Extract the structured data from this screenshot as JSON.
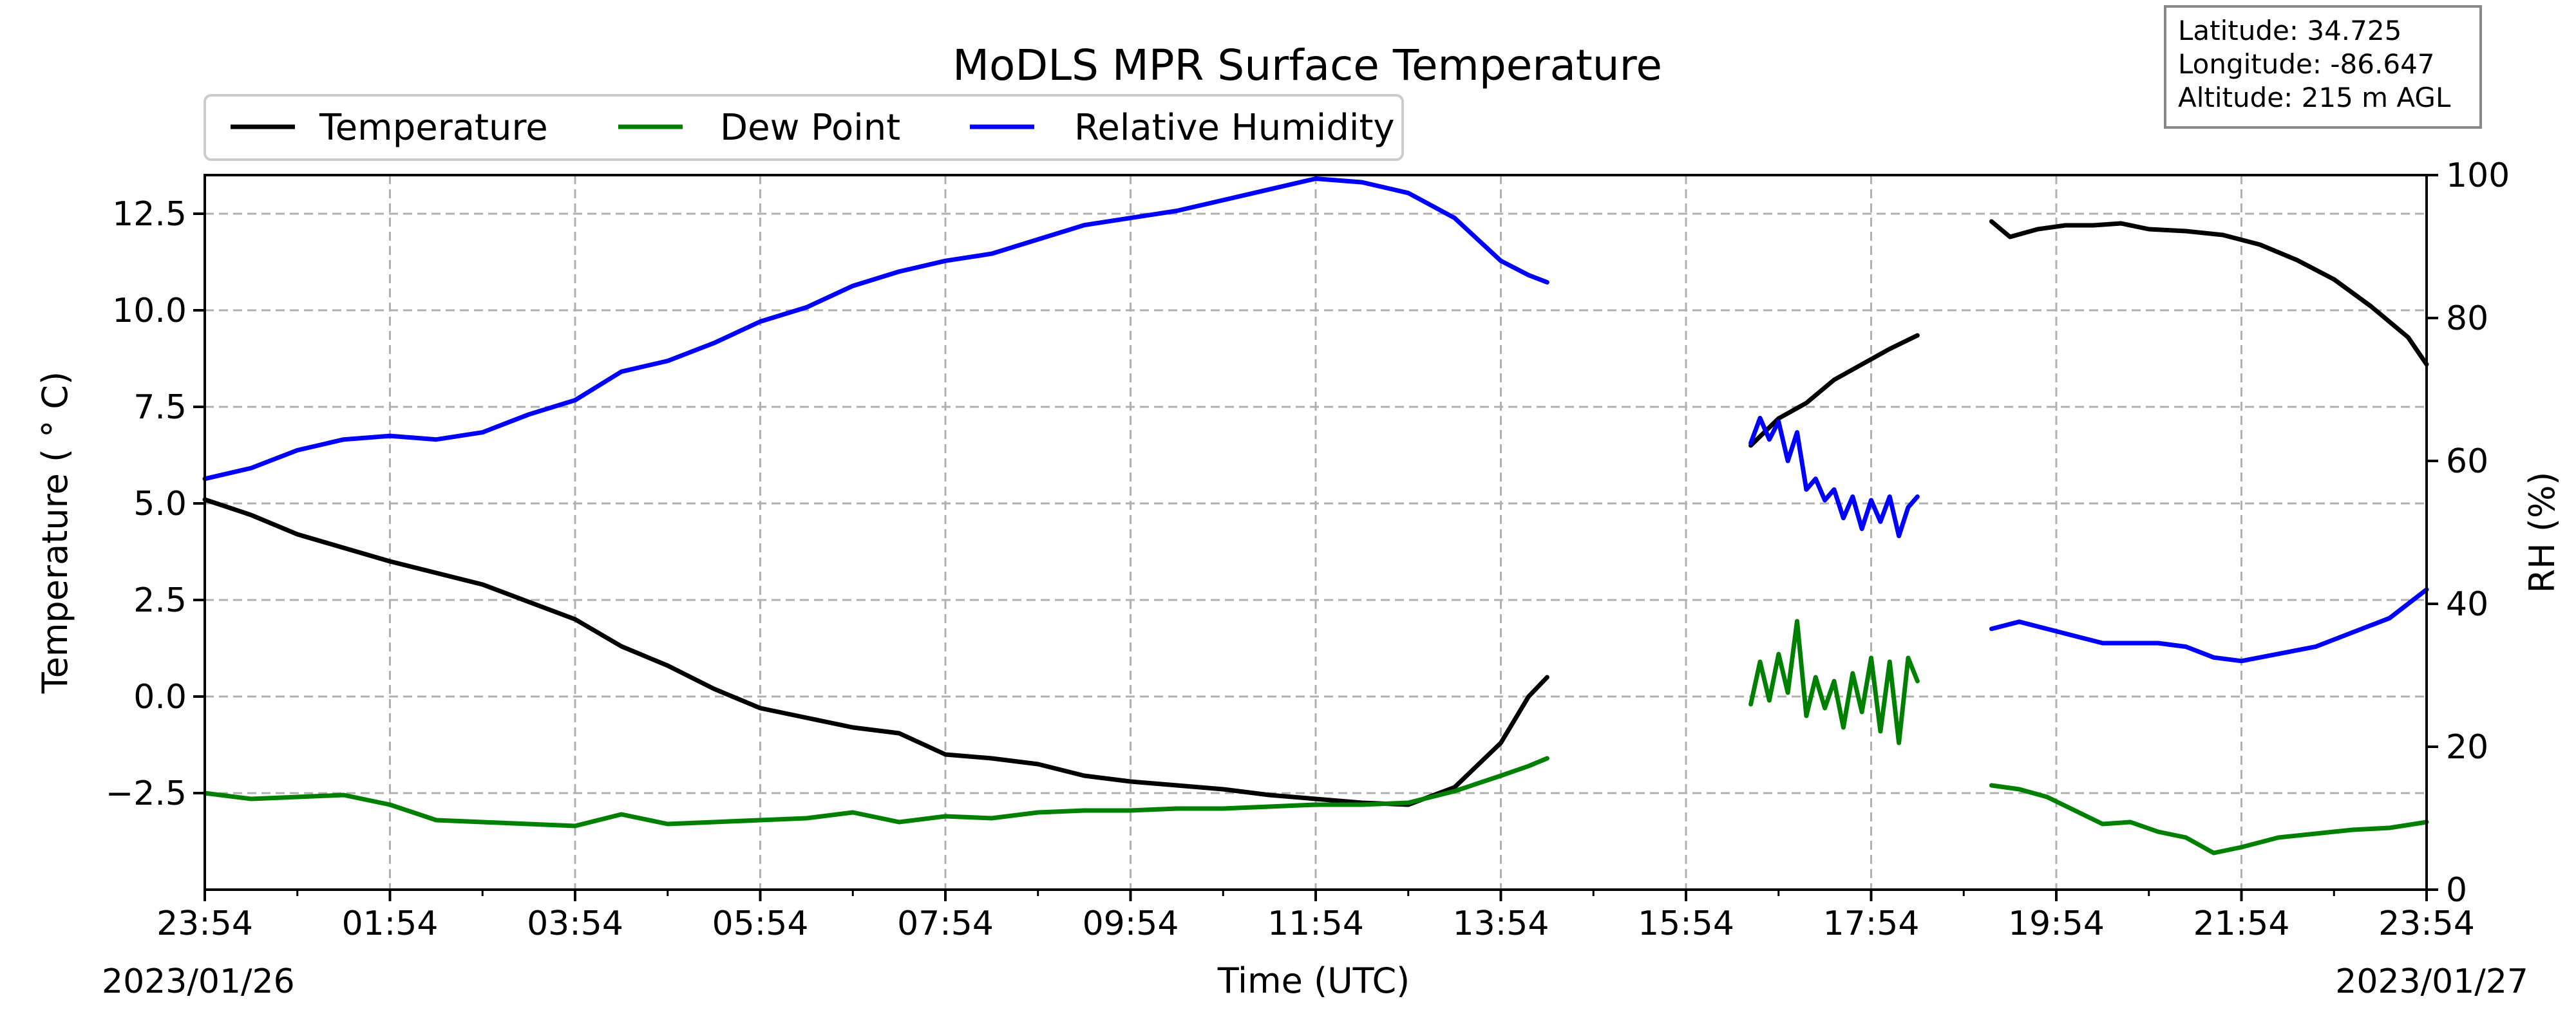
{
  "chart_data": {
    "type": "line",
    "title": "MoDLS MPR Surface Temperature",
    "xlabel": "Time (UTC)",
    "ylabel": "Temperature ( $^\\circ$C)",
    "ylabel_display": "Temperature ( ° C)",
    "y2label": "RH (%)",
    "xlim_hours": [
      0,
      24
    ],
    "ylim": [
      -5,
      13.5
    ],
    "y2lim": [
      0,
      100
    ],
    "x_tick_labels": [
      "23:54",
      "01:54",
      "03:54",
      "05:54",
      "07:54",
      "09:54",
      "11:54",
      "13:54",
      "15:54",
      "17:54",
      "19:54",
      "21:54",
      "23:54"
    ],
    "y_ticks": [
      -2.5,
      0.0,
      2.5,
      5.0,
      7.5,
      10.0,
      12.5
    ],
    "y_tick_labels": [
      "−2.5",
      "0.0",
      "2.5",
      "5.0",
      "7.5",
      "10.0",
      "12.5"
    ],
    "y2_ticks": [
      0,
      20,
      40,
      60,
      80,
      100
    ],
    "y2_tick_labels": [
      "0",
      "20",
      "40",
      "60",
      "80",
      "100"
    ],
    "date_start": "2023/01/26",
    "date_end": "2023/01/27",
    "grid": true,
    "legend_position": "upper-left above plot",
    "info_box": [
      "Latitude: 34.725",
      "Longitude: -86.647",
      "Altitude: 215 m AGL"
    ],
    "x_unit_note": "hours since 23:54 UTC 2023/01/26",
    "series": [
      {
        "name": "Temperature",
        "color": "#000000",
        "axis": "left",
        "segments": [
          [
            [
              0.0,
              5.1
            ],
            [
              0.5,
              4.7
            ],
            [
              1.0,
              4.2
            ],
            [
              1.5,
              3.85
            ],
            [
              2.0,
              3.5
            ],
            [
              2.5,
              3.2
            ],
            [
              3.0,
              2.9
            ],
            [
              3.5,
              2.45
            ],
            [
              4.0,
              2.0
            ],
            [
              4.5,
              1.3
            ],
            [
              5.0,
              0.8
            ],
            [
              5.5,
              0.2
            ],
            [
              6.0,
              -0.3
            ],
            [
              6.5,
              -0.55
            ],
            [
              7.0,
              -0.8
            ],
            [
              7.5,
              -0.95
            ],
            [
              8.0,
              -1.5
            ],
            [
              8.5,
              -1.6
            ],
            [
              9.0,
              -1.75
            ],
            [
              9.5,
              -2.05
            ],
            [
              10.0,
              -2.2
            ],
            [
              10.5,
              -2.3
            ],
            [
              11.0,
              -2.4
            ],
            [
              11.5,
              -2.55
            ],
            [
              12.0,
              -2.65
            ],
            [
              12.5,
              -2.75
            ],
            [
              13.0,
              -2.8
            ],
            [
              13.5,
              -2.35
            ],
            [
              14.0,
              -1.2
            ],
            [
              14.3,
              0.0
            ],
            [
              14.5,
              0.5
            ]
          ],
          [
            [
              16.7,
              6.5
            ],
            [
              17.0,
              7.2
            ],
            [
              17.3,
              7.6
            ],
            [
              17.6,
              8.2
            ],
            [
              17.9,
              8.6
            ],
            [
              18.2,
              9.0
            ],
            [
              18.5,
              9.35
            ]
          ],
          [
            [
              19.3,
              12.3
            ],
            [
              19.5,
              11.9
            ],
            [
              19.8,
              12.1
            ],
            [
              20.1,
              12.2
            ],
            [
              20.4,
              12.2
            ],
            [
              20.7,
              12.25
            ],
            [
              21.0,
              12.1
            ],
            [
              21.4,
              12.05
            ],
            [
              21.8,
              11.95
            ],
            [
              22.2,
              11.7
            ],
            [
              22.6,
              11.3
            ],
            [
              23.0,
              10.8
            ],
            [
              23.4,
              10.1
            ],
            [
              23.8,
              9.3
            ],
            [
              24.0,
              8.6
            ]
          ]
        ]
      },
      {
        "name": "Dew Point",
        "color": "#008000",
        "axis": "left",
        "segments": [
          [
            [
              0.0,
              -2.5
            ],
            [
              0.5,
              -2.65
            ],
            [
              1.0,
              -2.6
            ],
            [
              1.5,
              -2.55
            ],
            [
              2.0,
              -2.8
            ],
            [
              2.5,
              -3.2
            ],
            [
              3.0,
              -3.25
            ],
            [
              3.5,
              -3.3
            ],
            [
              4.0,
              -3.35
            ],
            [
              4.5,
              -3.05
            ],
            [
              5.0,
              -3.3
            ],
            [
              5.5,
              -3.25
            ],
            [
              6.0,
              -3.2
            ],
            [
              6.5,
              -3.15
            ],
            [
              7.0,
              -3.0
            ],
            [
              7.5,
              -3.25
            ],
            [
              8.0,
              -3.1
            ],
            [
              8.5,
              -3.15
            ],
            [
              9.0,
              -3.0
            ],
            [
              9.5,
              -2.95
            ],
            [
              10.0,
              -2.95
            ],
            [
              10.5,
              -2.9
            ],
            [
              11.0,
              -2.9
            ],
            [
              11.5,
              -2.85
            ],
            [
              12.0,
              -2.8
            ],
            [
              12.5,
              -2.8
            ],
            [
              13.0,
              -2.75
            ],
            [
              13.5,
              -2.45
            ],
            [
              14.0,
              -2.05
            ],
            [
              14.3,
              -1.8
            ],
            [
              14.5,
              -1.6
            ]
          ],
          [
            [
              16.7,
              -0.2
            ],
            [
              16.8,
              0.9
            ],
            [
              16.9,
              -0.1
            ],
            [
              17.0,
              1.1
            ],
            [
              17.1,
              0.1
            ],
            [
              17.2,
              1.95
            ],
            [
              17.3,
              -0.5
            ],
            [
              17.4,
              0.5
            ],
            [
              17.5,
              -0.3
            ],
            [
              17.6,
              0.4
            ],
            [
              17.7,
              -0.8
            ],
            [
              17.8,
              0.6
            ],
            [
              17.9,
              -0.4
            ],
            [
              18.0,
              1.0
            ],
            [
              18.1,
              -0.9
            ],
            [
              18.2,
              0.9
            ],
            [
              18.3,
              -1.2
            ],
            [
              18.4,
              1.0
            ],
            [
              18.5,
              0.4
            ]
          ],
          [
            [
              19.3,
              -2.3
            ],
            [
              19.6,
              -2.4
            ],
            [
              19.9,
              -2.6
            ],
            [
              20.2,
              -2.95
            ],
            [
              20.5,
              -3.3
            ],
            [
              20.8,
              -3.25
            ],
            [
              21.1,
              -3.5
            ],
            [
              21.4,
              -3.65
            ],
            [
              21.7,
              -4.05
            ],
            [
              22.0,
              -3.9
            ],
            [
              22.4,
              -3.65
            ],
            [
              22.8,
              -3.55
            ],
            [
              23.2,
              -3.45
            ],
            [
              23.6,
              -3.4
            ],
            [
              24.0,
              -3.25
            ]
          ]
        ]
      },
      {
        "name": "Relative Humidity",
        "color": "#0000ff",
        "axis": "right",
        "segments": [
          [
            [
              0.0,
              57.5
            ],
            [
              0.5,
              59.0
            ],
            [
              1.0,
              61.5
            ],
            [
              1.5,
              63.0
            ],
            [
              2.0,
              63.5
            ],
            [
              2.5,
              63.0
            ],
            [
              3.0,
              64.0
            ],
            [
              3.5,
              66.5
            ],
            [
              4.0,
              68.5
            ],
            [
              4.5,
              72.5
            ],
            [
              5.0,
              74.0
            ],
            [
              5.5,
              76.5
            ],
            [
              6.0,
              79.5
            ],
            [
              6.5,
              81.5
            ],
            [
              7.0,
              84.5
            ],
            [
              7.5,
              86.5
            ],
            [
              8.0,
              88.0
            ],
            [
              8.5,
              89.0
            ],
            [
              9.0,
              91.0
            ],
            [
              9.5,
              93.0
            ],
            [
              10.0,
              94.0
            ],
            [
              10.5,
              95.0
            ],
            [
              11.0,
              96.5
            ],
            [
              11.5,
              98.0
            ],
            [
              12.0,
              99.5
            ],
            [
              12.5,
              99.0
            ],
            [
              13.0,
              97.5
            ],
            [
              13.5,
              94.0
            ],
            [
              14.0,
              88.0
            ],
            [
              14.3,
              86.0
            ],
            [
              14.5,
              85.0
            ]
          ],
          [
            [
              16.7,
              62.5
            ],
            [
              16.8,
              66.0
            ],
            [
              16.9,
              63.0
            ],
            [
              17.0,
              65.5
            ],
            [
              17.1,
              60.0
            ],
            [
              17.2,
              64.0
            ],
            [
              17.3,
              56.0
            ],
            [
              17.4,
              57.5
            ],
            [
              17.5,
              54.5
            ],
            [
              17.6,
              56.0
            ],
            [
              17.7,
              52.0
            ],
            [
              17.8,
              55.0
            ],
            [
              17.9,
              50.5
            ],
            [
              18.0,
              54.5
            ],
            [
              18.1,
              51.5
            ],
            [
              18.2,
              55.0
            ],
            [
              18.3,
              49.5
            ],
            [
              18.4,
              53.5
            ],
            [
              18.5,
              55.0
            ]
          ],
          [
            [
              19.3,
              36.5
            ],
            [
              19.6,
              37.5
            ],
            [
              19.9,
              36.5
            ],
            [
              20.2,
              35.5
            ],
            [
              20.5,
              34.5
            ],
            [
              20.8,
              34.5
            ],
            [
              21.1,
              34.5
            ],
            [
              21.4,
              34.0
            ],
            [
              21.7,
              32.5
            ],
            [
              22.0,
              32.0
            ],
            [
              22.4,
              33.0
            ],
            [
              22.8,
              34.0
            ],
            [
              23.2,
              36.0
            ],
            [
              23.6,
              38.0
            ],
            [
              24.0,
              42.0
            ]
          ]
        ]
      }
    ]
  }
}
